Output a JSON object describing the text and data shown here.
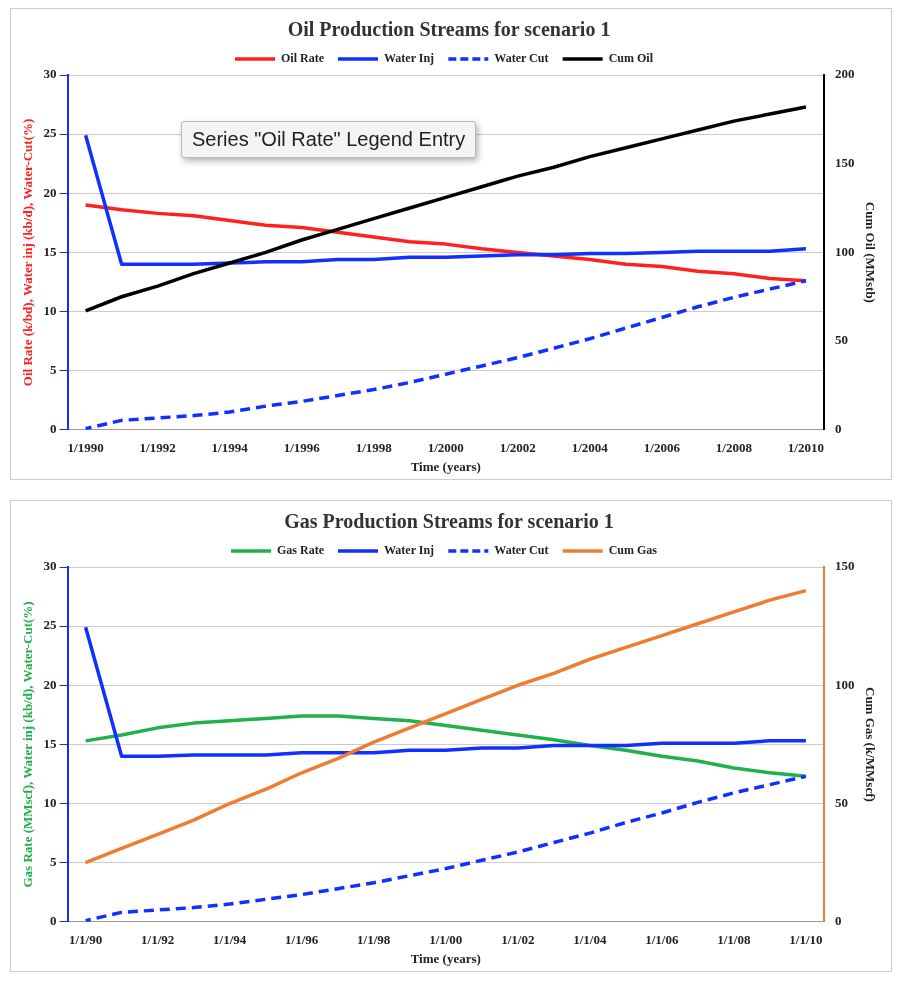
{
  "chart_data": [
    {
      "type": "line",
      "title": "Oil Production Streams for scenario 1",
      "xlabel": "Time (years)",
      "ylabel": "Oil Rate (k/bd), Water inj (kb/d), Water-Cut(%)",
      "y2label": "Cum Oil (MMstb)",
      "categories": [
        "1/1990",
        null,
        "1/1992",
        null,
        "1/1994",
        null,
        "1/1996",
        null,
        "1/1998",
        null,
        "1/2000",
        null,
        "1/2002",
        null,
        "1/2004",
        null,
        "1/2006",
        null,
        "1/2008",
        null,
        "1/2010"
      ],
      "series": [
        {
          "name": "Oil Rate",
          "color": "#ff2020",
          "values": [
            19.0,
            18.6,
            18.3,
            18.1,
            17.7,
            17.3,
            17.1,
            16.7,
            16.3,
            15.9,
            15.7,
            15.3,
            15.0,
            14.7,
            14.4,
            14.0,
            13.8,
            13.4,
            13.2,
            12.8,
            12.6
          ]
        },
        {
          "name": "Water Inj",
          "color": "#1030ff",
          "values": [
            24.9,
            14.0,
            14.0,
            14.0,
            14.1,
            14.2,
            14.2,
            14.4,
            14.4,
            14.6,
            14.6,
            14.7,
            14.8,
            14.8,
            14.9,
            14.9,
            15.0,
            15.1,
            15.1,
            15.1,
            15.3
          ]
        },
        {
          "name": "Water Cut",
          "color": "#1030ff",
          "line_style": "dashed",
          "values": [
            0.1,
            0.8,
            1.0,
            1.2,
            1.5,
            2.0,
            2.4,
            2.9,
            3.4,
            4.0,
            4.7,
            5.4,
            6.1,
            6.9,
            7.7,
            8.6,
            9.5,
            10.4,
            11.2,
            11.9,
            12.6
          ]
        },
        {
          "name": "Cum Oil",
          "color": "#000000",
          "axis": "y2",
          "values": [
            67,
            75,
            81,
            88,
            94,
            100,
            107,
            113,
            119,
            125,
            131,
            137,
            143,
            148,
            154,
            159,
            164,
            169,
            174,
            178,
            182
          ]
        }
      ],
      "ylim": [
        0,
        30
      ],
      "yticks": [
        0,
        5,
        10,
        15,
        20,
        25,
        30
      ],
      "y2lim": [
        0,
        200
      ],
      "y2ticks": [
        0,
        50,
        100,
        150,
        200
      ],
      "grid": "y",
      "legend": "top",
      "marker": "none",
      "line_style": "solid",
      "annotations": [
        "Series \"Oil Rate\" Legend Entry"
      ]
    },
    {
      "type": "line",
      "title": "Gas Production Streams for scenario 1",
      "xlabel": "Time (years)",
      "ylabel": "Gas Rate (MMscf), Water inj (kb/d), Water-Cut(%)",
      "y2label": "Cum Gas (k/MMscf)",
      "categories": [
        "1/1/90",
        null,
        "1/1/92",
        null,
        "1/1/94",
        null,
        "1/1/96",
        null,
        "1/1/98",
        null,
        "1/1/00",
        null,
        "1/1/02",
        null,
        "1/1/04",
        null,
        "1/1/06",
        null,
        "1/1/08",
        null,
        "1/1/10"
      ],
      "series": [
        {
          "name": "Gas Rate",
          "color": "#22b04b",
          "values": [
            15.3,
            15.8,
            16.4,
            16.8,
            17.0,
            17.2,
            17.4,
            17.4,
            17.2,
            17.0,
            16.6,
            16.2,
            15.8,
            15.4,
            14.9,
            14.5,
            14.0,
            13.6,
            13.0,
            12.6,
            12.3
          ]
        },
        {
          "name": "Water Inj",
          "color": "#1030ff",
          "values": [
            24.9,
            14.0,
            14.0,
            14.1,
            14.1,
            14.1,
            14.3,
            14.3,
            14.3,
            14.5,
            14.5,
            14.7,
            14.7,
            14.9,
            14.9,
            14.9,
            15.1,
            15.1,
            15.1,
            15.3,
            15.3
          ]
        },
        {
          "name": "Water Cut",
          "color": "#1030ff",
          "line_style": "dashed",
          "values": [
            0.1,
            0.8,
            1.0,
            1.2,
            1.5,
            1.9,
            2.3,
            2.8,
            3.3,
            3.9,
            4.5,
            5.2,
            5.9,
            6.7,
            7.5,
            8.4,
            9.2,
            10.1,
            10.9,
            11.6,
            12.3
          ]
        },
        {
          "name": "Cum Gas",
          "color": "#ed7d31",
          "axis": "y2",
          "values": [
            25,
            31,
            37,
            43,
            50,
            56,
            63,
            69,
            76,
            82,
            88,
            94,
            100,
            105,
            111,
            116,
            121,
            126,
            131,
            136,
            140
          ]
        }
      ],
      "ylim": [
        0,
        30
      ],
      "yticks": [
        0,
        5,
        10,
        15,
        20,
        25,
        30
      ],
      "y2lim": [
        0,
        150
      ],
      "y2ticks": [
        0,
        50,
        100,
        150
      ],
      "grid": "y",
      "legend": "top",
      "marker": "none",
      "line_style": "solid"
    }
  ]
}
